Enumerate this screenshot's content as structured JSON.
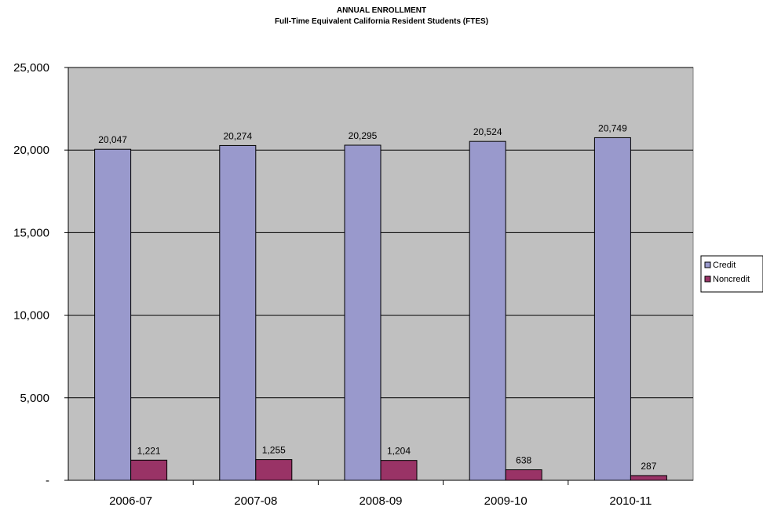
{
  "chart_data": {
    "type": "bar",
    "title": "ANNUAL ENROLLMENT",
    "subtitle": "Full-Time Equivalent California Resident Students (FTES)",
    "categories": [
      "2006-07",
      "2007-08",
      "2008-09",
      "2009-10",
      "2010-11"
    ],
    "series": [
      {
        "name": "Credit",
        "values": [
          20047,
          20274,
          20295,
          20524,
          20749
        ],
        "labels": [
          "20,047",
          "20,274",
          "20,295",
          "20,524",
          "20,749"
        ],
        "color": "#9999cc"
      },
      {
        "name": "Noncredit",
        "values": [
          1221,
          1255,
          1204,
          638,
          287
        ],
        "labels": [
          "1,221",
          "1,255",
          "1,204",
          "638",
          "287"
        ],
        "color": "#993366"
      }
    ],
    "ylim": [
      0,
      25000
    ],
    "yticks": [
      0,
      5000,
      10000,
      15000,
      20000,
      25000
    ],
    "ytick_labels": [
      "-",
      "5,000",
      "10,000",
      "15,000",
      "20,000",
      "25,000"
    ],
    "xlabel": "",
    "ylabel": "",
    "grid": true,
    "legend_position": "right",
    "plot_background": "#c0c0c0"
  }
}
